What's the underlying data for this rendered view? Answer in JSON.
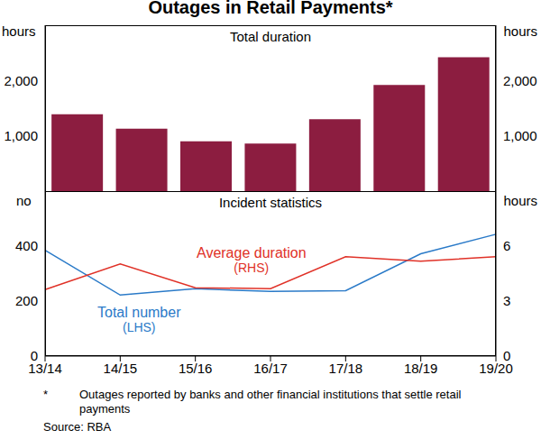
{
  "title": "Outages in Retail Payments*",
  "notes": [
    "*",
    "Outages reported by banks and other financial institutions that settle retail payments"
  ],
  "source": "Source: RBA",
  "chart_data": [
    {
      "type": "bar",
      "subtitle": "Total duration",
      "categories": [
        "13/14",
        "14/15",
        "15/16",
        "16/17",
        "17/18",
        "18/19",
        "19/20"
      ],
      "values": [
        1390,
        1130,
        900,
        860,
        1300,
        1920,
        2420
      ],
      "color": "#8c1d40",
      "y_label": "hours",
      "y2_label": "hours",
      "ylim": [
        0,
        3000
      ],
      "yticks": [
        {
          "value": 1000,
          "label": "1,000"
        },
        {
          "value": 2000,
          "label": "2,000"
        }
      ],
      "y2lim": [
        0,
        3000
      ],
      "y2ticks": [
        {
          "value": 1000,
          "label": "1,000"
        },
        {
          "value": 2000,
          "label": "2,000"
        }
      ],
      "grid": false,
      "tick_labels": "y"
    },
    {
      "type": "line",
      "subtitle": "Incident statistics",
      "categories": [
        "13/14",
        "14/15",
        "15/16",
        "16/17",
        "17/18",
        "18/19",
        "19/20"
      ],
      "y_label": "no",
      "y2_label": "hours",
      "ylim": [
        0,
        600
      ],
      "yticks": [
        0,
        200,
        400
      ],
      "y2lim": [
        0,
        9
      ],
      "y2ticks": [
        0,
        3,
        6
      ],
      "grid": false,
      "series": [
        {
          "name": "Total number",
          "note": "(LHS)",
          "color": "#2a7ac8",
          "values": [
            385,
            222,
            245,
            235,
            238,
            372,
            443
          ]
        },
        {
          "name": "Average duration",
          "note": "(RHS)",
          "color": "#e03127",
          "axis": "y2",
          "values": [
            3.63,
            5.03,
            3.73,
            3.68,
            5.42,
            5.18,
            5.42
          ]
        }
      ]
    }
  ]
}
